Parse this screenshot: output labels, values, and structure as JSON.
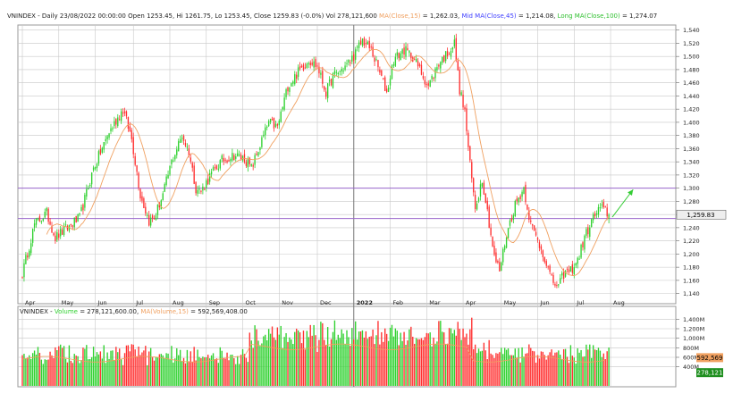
{
  "header": {
    "symbol": "VNINDEX",
    "interval": "Daily",
    "datetime": "23/08/2022 00:00:00",
    "open_label": "Open",
    "open": "1253.45",
    "hi_label": "Hi",
    "hi": "1261.75",
    "lo_label": "Lo",
    "lo": "1253.45",
    "close_label": "Close",
    "close": "1259.83",
    "change": "(-0.0%)",
    "vol_label": "Vol",
    "vol": "278,121,600",
    "ma_short": "MA(Close,15)",
    "ma_short_value": "1,262.03",
    "ma_mid": "Mid MA(Close,45)",
    "ma_mid_value": "1,214.08",
    "ma_long": "Long MA(Close,100)",
    "ma_long_value": "1,274.07"
  },
  "volume_header": {
    "symbol": "VNINDEX",
    "label": "Volume",
    "value": "278,121,600.00",
    "ma": "MA(Volume,15)",
    "ma_value": "592,569,408.00"
  },
  "colors": {
    "up": "#2fd12f",
    "down": "#ff3030",
    "ma_short": "#f0a060",
    "ma_mid": "#4040ff",
    "ma_long": "#30c030",
    "hline": "#9966cc",
    "arrow": "#33cc33",
    "grid": "#c8c8c8",
    "price_marker_bg": "#eeeeee",
    "vol_ma_marker_bg": "#f0a060",
    "vol_marker_bg": "#1f8f1f"
  },
  "chart_data": {
    "type": "candlestick",
    "price_axis": {
      "ylim": [
        1130,
        1545
      ],
      "ticks": [
        "1,540",
        "1,520",
        "1,500",
        "1,480",
        "1,460",
        "1,440",
        "1,420",
        "1,400",
        "1,380",
        "1,360",
        "1,340",
        "1,320",
        "1,300",
        "1,280",
        "1,260",
        "1,240",
        "1,220",
        "1,200",
        "1,180",
        "1,160",
        "1,140"
      ],
      "tick_values": [
        1540,
        1520,
        1500,
        1480,
        1460,
        1440,
        1420,
        1400,
        1380,
        1360,
        1340,
        1320,
        1300,
        1280,
        1260,
        1240,
        1220,
        1200,
        1180,
        1160,
        1140
      ],
      "last_price_label": "1,259.83",
      "last_price": 1259.83
    },
    "volume_axis": {
      "ylim": [
        0,
        1500
      ],
      "unit": "M",
      "ticks": [
        "1,400M",
        "1,200M",
        "1,000M",
        "800M",
        "600M",
        "400M"
      ],
      "tick_values": [
        1400,
        1200,
        1000,
        800,
        600,
        400
      ],
      "ma_marker_label": "592,569",
      "ma_marker_value": 592.569,
      "vol_marker_label": "278,121",
      "vol_marker_value": 278.121
    },
    "x_axis": {
      "months": [
        "Apr",
        "May",
        "Jun",
        "Jul",
        "Aug",
        "Sep",
        "Oct",
        "Nov",
        "Dec",
        "2022",
        "Feb",
        "Mar",
        "Apr",
        "May",
        "Jun",
        "Jul",
        "Aug"
      ],
      "year_start_label": "2022"
    },
    "horizontal_lines": [
      1300,
      1254
    ],
    "anchors": [
      [
        0,
        1170
      ],
      [
        7,
        1245
      ],
      [
        14,
        1262
      ],
      [
        19,
        1225
      ],
      [
        26,
        1240
      ],
      [
        33,
        1255
      ],
      [
        41,
        1330
      ],
      [
        50,
        1385
      ],
      [
        58,
        1420
      ],
      [
        63,
        1375
      ],
      [
        68,
        1290
      ],
      [
        73,
        1250
      ],
      [
        76,
        1255
      ],
      [
        81,
        1290
      ],
      [
        86,
        1340
      ],
      [
        92,
        1380
      ],
      [
        96,
        1355
      ],
      [
        100,
        1300
      ],
      [
        103,
        1295
      ],
      [
        108,
        1318
      ],
      [
        115,
        1342
      ],
      [
        122,
        1350
      ],
      [
        128,
        1345
      ],
      [
        132,
        1330
      ],
      [
        137,
        1365
      ],
      [
        142,
        1400
      ],
      [
        147,
        1392
      ],
      [
        153,
        1455
      ],
      [
        160,
        1480
      ],
      [
        165,
        1495
      ],
      [
        170,
        1485
      ],
      [
        175,
        1445
      ],
      [
        179,
        1470
      ],
      [
        184,
        1480
      ],
      [
        188,
        1490
      ],
      [
        192,
        1505
      ],
      [
        196,
        1525
      ],
      [
        201,
        1510
      ],
      [
        206,
        1475
      ],
      [
        210,
        1445
      ],
      [
        214,
        1495
      ],
      [
        220,
        1510
      ],
      [
        225,
        1500
      ],
      [
        230,
        1475
      ],
      [
        234,
        1455
      ],
      [
        240,
        1490
      ],
      [
        245,
        1505
      ],
      [
        249,
        1520
      ],
      [
        252,
        1450
      ],
      [
        255,
        1415
      ],
      [
        258,
        1335
      ],
      [
        261,
        1270
      ],
      [
        265,
        1315
      ],
      [
        268,
        1265
      ],
      [
        272,
        1195
      ],
      [
        275,
        1175
      ],
      [
        279,
        1230
      ],
      [
        284,
        1275
      ],
      [
        289,
        1300
      ],
      [
        293,
        1245
      ],
      [
        297,
        1220
      ],
      [
        301,
        1195
      ],
      [
        305,
        1160
      ],
      [
        309,
        1150
      ],
      [
        312,
        1170
      ],
      [
        316,
        1175
      ],
      [
        320,
        1190
      ],
      [
        324,
        1225
      ],
      [
        329,
        1255
      ],
      [
        333,
        1270
      ],
      [
        336,
        1265
      ],
      [
        338,
        1260
      ]
    ],
    "arrow": {
      "from_index": 340,
      "from": 1256,
      "to_index": 352,
      "to": 1298
    }
  }
}
